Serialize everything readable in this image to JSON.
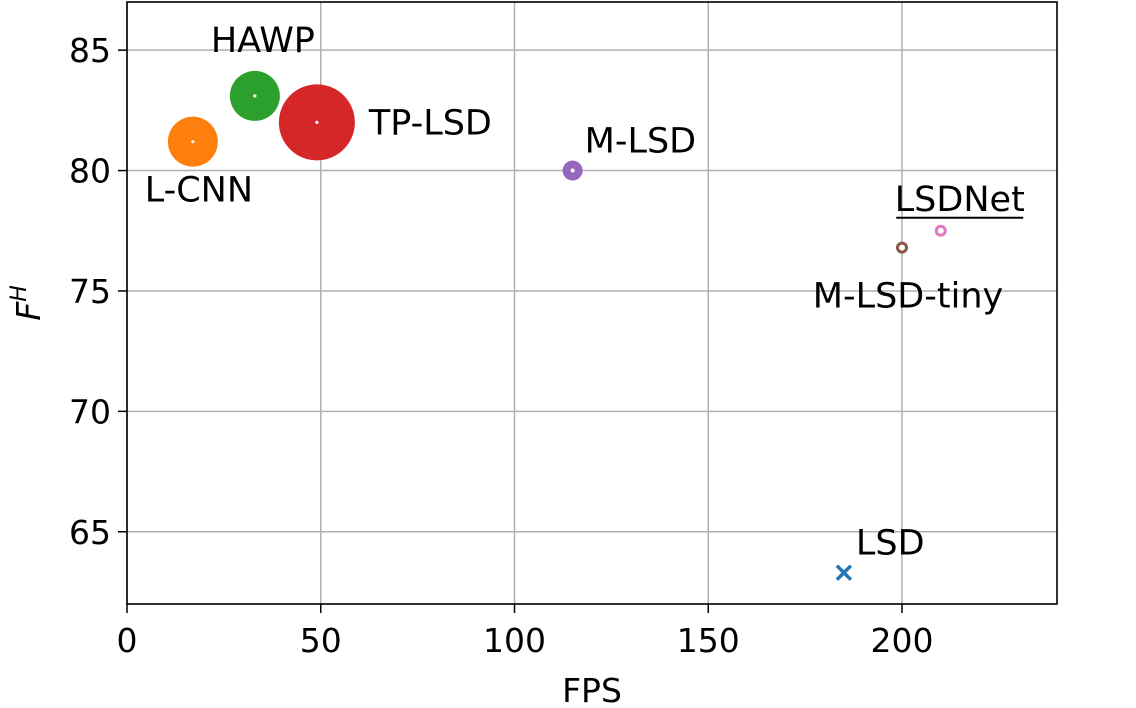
{
  "chart_data": {
    "type": "scatter",
    "xlabel": "FPS",
    "ylabel": "F",
    "ylabel_superscript": "H",
    "xlim": [
      0,
      240
    ],
    "ylim": [
      62,
      87
    ],
    "xticks": [
      0,
      50,
      100,
      150,
      200
    ],
    "yticks": [
      65,
      70,
      75,
      80,
      85
    ],
    "xtick_labels": [
      "0",
      "50",
      "100",
      "150",
      "200"
    ],
    "ytick_labels": [
      "65",
      "70",
      "75",
      "80",
      "85"
    ],
    "grid": true,
    "series": [
      {
        "name": "L-CNN",
        "x": 17,
        "y": 81.2,
        "marker": "circle",
        "size": "large",
        "color": "#ff7f0e",
        "label_position": "below"
      },
      {
        "name": "HAWP",
        "x": 33,
        "y": 83.1,
        "marker": "circle",
        "size": "large",
        "color": "#2ca02c",
        "label_position": "above"
      },
      {
        "name": "TP-LSD",
        "x": 49,
        "y": 82.0,
        "marker": "circle",
        "size": "xlarge",
        "color": "#d62728",
        "label_position": "right"
      },
      {
        "name": "M-LSD",
        "x": 115,
        "y": 80.0,
        "marker": "circle",
        "size": "small",
        "color": "#9467bd",
        "label_position": "above-right"
      },
      {
        "name": "M-LSD-tiny",
        "x": 200,
        "y": 76.8,
        "marker": "circle",
        "size": "tiny",
        "color": "#8c564b",
        "label_position": "below"
      },
      {
        "name": "LSDNet",
        "x": 210,
        "y": 77.5,
        "marker": "circle",
        "size": "tiny",
        "color": "#e377c2",
        "label_position": "above-left",
        "label_underlined": true
      },
      {
        "name": "LSD",
        "x": 185,
        "y": 63.3,
        "marker": "x",
        "size": "small",
        "color": "#1f77b4",
        "label_position": "above-right"
      }
    ]
  }
}
